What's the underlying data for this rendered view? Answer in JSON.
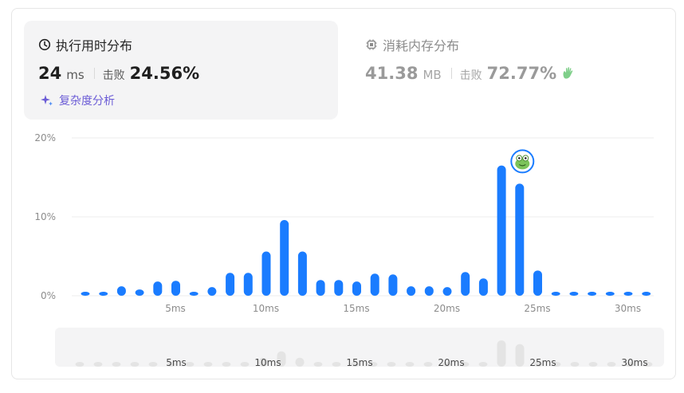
{
  "runtime": {
    "title": "执行用时分布",
    "value": "24",
    "unit": "ms",
    "beat_label": "击败",
    "beat_value": "24.56%",
    "analysis": "复杂度分析"
  },
  "memory": {
    "title": "消耗内存分布",
    "value": "41.38",
    "unit": "MB",
    "beat_label": "击败",
    "beat_value": "72.77%"
  },
  "colors": {
    "bar": "#1a7cff",
    "grid": "#ececec",
    "overview_bar": "#e4e4e4"
  },
  "chart_data": {
    "type": "bar",
    "categories": [
      "0ms",
      "1ms",
      "2ms",
      "3ms",
      "4ms",
      "5ms",
      "6ms",
      "7ms",
      "8ms",
      "9ms",
      "10ms",
      "11ms",
      "12ms",
      "13ms",
      "14ms",
      "15ms",
      "16ms",
      "17ms",
      "18ms",
      "19ms",
      "20ms",
      "21ms",
      "22ms",
      "23ms",
      "24ms",
      "25ms",
      "26ms",
      "27ms",
      "28ms",
      "29ms",
      "30ms",
      "31ms"
    ],
    "values": [
      0.5,
      0.5,
      1.2,
      0.8,
      1.8,
      1.9,
      0.5,
      1.1,
      2.9,
      2.9,
      5.6,
      9.6,
      5.6,
      2.0,
      2.0,
      1.8,
      2.8,
      2.7,
      1.2,
      1.2,
      1.1,
      3.0,
      2.2,
      16.5,
      14.2,
      3.2,
      0.5,
      0.5,
      0.5,
      0.5,
      0.5,
      0.5
    ],
    "x_ticks": [
      "5ms",
      "10ms",
      "15ms",
      "20ms",
      "25ms",
      "30ms"
    ],
    "x_tick_indices": [
      5,
      10,
      15,
      20,
      25,
      30
    ],
    "y_ticks": [
      "0%",
      "10%",
      "20%"
    ],
    "y_tick_values": [
      0,
      10,
      20
    ],
    "ylim": [
      0,
      20
    ],
    "highlight_index": 24,
    "grid": true
  }
}
